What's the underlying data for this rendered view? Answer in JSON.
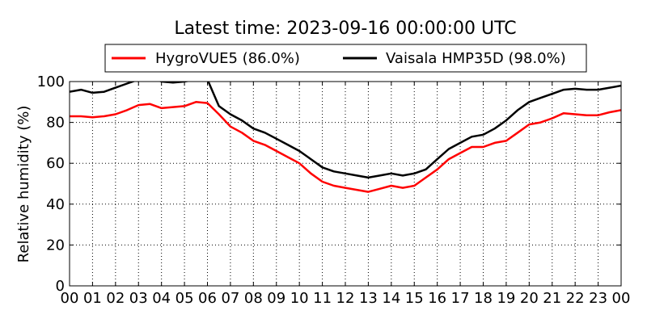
{
  "chart_data": {
    "type": "line",
    "title": "Latest time: 2023-09-16 00:00:00 UTC",
    "xlabel": "",
    "ylabel": "Relative humidity (%)",
    "xlim": [
      0,
      24
    ],
    "ylim": [
      0,
      100
    ],
    "x_tick_labels": [
      "00",
      "01",
      "02",
      "03",
      "04",
      "05",
      "06",
      "07",
      "08",
      "09",
      "10",
      "11",
      "12",
      "13",
      "14",
      "15",
      "16",
      "17",
      "18",
      "19",
      "20",
      "21",
      "22",
      "23",
      "00"
    ],
    "y_ticks": [
      0,
      20,
      40,
      60,
      80,
      100
    ],
    "grid": true,
    "legend_position": "top",
    "series": [
      {
        "name": "HygroVUE5 (86.0%)",
        "color": "#ff0000",
        "x": [
          0,
          0.5,
          1,
          1.5,
          2,
          2.5,
          3,
          3.5,
          4,
          4.5,
          5,
          5.5,
          6,
          6.5,
          7,
          7.5,
          8,
          8.5,
          9,
          9.5,
          10,
          10.5,
          11,
          11.5,
          12,
          12.5,
          13,
          13.5,
          14,
          14.5,
          15,
          15.5,
          16,
          16.5,
          17,
          17.5,
          18,
          18.5,
          19,
          19.5,
          20,
          20.5,
          21,
          21.5,
          22,
          22.5,
          23,
          23.5,
          24
        ],
        "y": [
          83,
          83,
          82.5,
          83,
          84,
          86,
          88.5,
          89,
          87,
          87.5,
          88,
          90,
          89.5,
          84,
          78,
          75,
          71,
          69,
          66,
          63,
          60,
          55,
          51,
          49,
          48,
          47,
          46,
          47.5,
          49,
          48,
          49,
          53,
          57,
          62,
          65,
          68,
          68,
          70,
          71,
          75,
          79,
          80,
          82,
          84.5,
          84,
          83.5,
          83.5,
          85,
          86
        ]
      },
      {
        "name": "Vaisala HMP35D (98.0%)",
        "color": "#000000",
        "x": [
          0,
          0.5,
          1,
          1.5,
          2,
          2.5,
          3,
          3.5,
          4,
          4.5,
          5,
          5.5,
          6,
          6.5,
          7,
          7.5,
          8,
          8.5,
          9,
          9.5,
          10,
          10.5,
          11,
          11.5,
          12,
          12.5,
          13,
          13.5,
          14,
          14.5,
          15,
          15.5,
          16,
          16.5,
          17,
          17.5,
          18,
          18.5,
          19,
          19.5,
          20,
          20.5,
          21,
          21.5,
          22,
          22.5,
          23,
          23.5,
          24
        ],
        "y": [
          95,
          96,
          94.5,
          95,
          97,
          99,
          101,
          102,
          100,
          99.5,
          100,
          101,
          101,
          88,
          84,
          81,
          77,
          75,
          72,
          69,
          66,
          62,
          58,
          56,
          55,
          54,
          53,
          54,
          55,
          54,
          55,
          57,
          62,
          67,
          70,
          73,
          74,
          77,
          81,
          86,
          90,
          92,
          94,
          96,
          96.5,
          96,
          96,
          97,
          98
        ]
      }
    ]
  }
}
